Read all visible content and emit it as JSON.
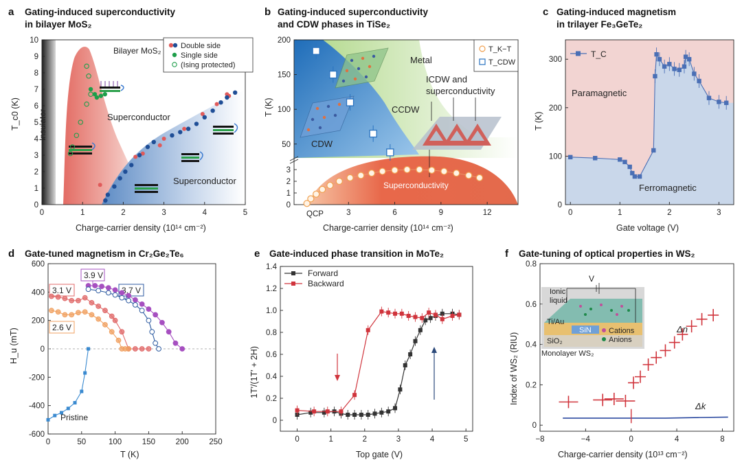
{
  "chart_data": [
    {
      "id": "a",
      "type": "scatter",
      "title_line1": "Gating-induced superconductivity",
      "title_line2": "in bilayer MoS₂",
      "xlabel": "Charge-carrier density (10¹⁴ cm⁻²)",
      "ylabel": "T_c0 (K)",
      "xlim": [
        0,
        5
      ],
      "ylim": [
        0,
        10
      ],
      "xticks": [
        "0",
        "1",
        "2",
        "3",
        "4",
        "5"
      ],
      "yticks": [
        "0",
        "1",
        "2",
        "3",
        "4",
        "5",
        "6",
        "7",
        "8",
        "9",
        "10"
      ],
      "legend": [
        "Double side",
        "Single side",
        "(Ising protected)"
      ],
      "labels": {
        "material": "Bilayer MoS₂",
        "insulator": "Insulator",
        "sc1": "Superconductor",
        "sc2": "Superconductor"
      },
      "colors": {
        "double_red": "#e05a5a",
        "double_blue": "#1f4e96",
        "single": "#1e9e4a",
        "dome1": "#e8807a",
        "dome2": "#6e95c8"
      },
      "series": [
        {
          "name": "Double side (red)",
          "x": [
            1.43,
            2.3,
            2.48,
            3.0,
            3.5,
            3.95,
            4.3,
            4.6,
            4.55,
            2.9
          ],
          "y": [
            1.2,
            2.9,
            3.1,
            4.0,
            4.6,
            5.5,
            6.1,
            6.6,
            6.7,
            3.6
          ]
        },
        {
          "name": "Double side (blue)",
          "x": [
            1.56,
            1.62,
            1.78,
            1.92,
            2.05,
            2.2,
            2.4,
            2.6,
            2.75,
            3.2,
            3.4,
            3.6,
            3.8,
            4.0,
            4.2,
            4.4,
            4.55,
            4.75
          ],
          "y": [
            0.25,
            0.6,
            1.1,
            1.6,
            2.0,
            2.4,
            3.0,
            3.5,
            3.8,
            4.2,
            4.4,
            4.6,
            4.9,
            5.3,
            5.7,
            6.2,
            6.5,
            6.8
          ]
        },
        {
          "name": "Single side",
          "x": [
            1.2,
            1.3,
            1.35,
            1.45,
            1.55
          ],
          "y": [
            7.0,
            6.7,
            6.5,
            6.6,
            6.7
          ]
        },
        {
          "name": "(Ising protected)",
          "x": [
            1.1,
            1.15,
            1.2,
            1.1,
            0.95,
            0.85,
            0.75,
            0.7
          ],
          "y": [
            8.4,
            7.8,
            6.7,
            6.1,
            5.0,
            4.2,
            3.5,
            3.1
          ]
        }
      ]
    },
    {
      "id": "b",
      "type": "scatter",
      "title_line1": "Gating-induced superconductivity",
      "title_line2": "and CDW phases in TiSe₂",
      "xlabel": "Charge-carrier density (10¹⁴ cm⁻²)",
      "ylabel": "T (K)",
      "xticks": [
        "3",
        "6",
        "9",
        "12"
      ],
      "yticks_upper": [
        "50",
        "100",
        "150",
        "200"
      ],
      "yticks_lower": [
        "0",
        "1",
        "2",
        "3"
      ],
      "legend": [
        "T_K−T",
        "T_CDW"
      ],
      "labels": {
        "qcp": "QCP",
        "metal": "Metal",
        "cdw": "CDW",
        "ccdw": "CCDW",
        "icdw1": "ICDW and",
        "icdw2": "superconductivity",
        "sc": "Superconductivity"
      },
      "colors": {
        "cdw_blue": "#2a73c0",
        "metal_green": "#a8d27a",
        "sc_orange": "#e86a4a",
        "tkt": "#f0a050"
      },
      "series": [
        {
          "name": "T_CDW",
          "x": [
            0.9,
            2.0,
            3.1,
            4.6,
            5.7
          ],
          "y": [
            184,
            150,
            110,
            65,
            38
          ]
        },
        {
          "name": "T_K−T",
          "x": [
            0.3,
            0.55,
            0.9,
            1.3,
            1.8,
            2.4,
            3.1,
            3.8,
            4.5,
            5.2,
            6.0,
            6.8,
            7.6,
            8.4,
            9.2,
            10.0,
            10.8,
            11.5
          ],
          "y": [
            0.1,
            0.5,
            0.9,
            1.3,
            1.65,
            2.0,
            2.3,
            2.5,
            2.7,
            2.85,
            2.95,
            3.0,
            3.0,
            2.95,
            2.85,
            2.7,
            2.5,
            2.3
          ]
        }
      ]
    },
    {
      "id": "c",
      "type": "line",
      "title_line1": "Gating-induced magnetism",
      "title_line2": "in trilayer Fe₃GeTe₂",
      "xlabel": "Gate voltage (V)",
      "ylabel": "T (K)",
      "xlim": [
        -0.1,
        3.3
      ],
      "ylim": [
        0,
        340
      ],
      "xticks": [
        "0",
        "1",
        "2",
        "3"
      ],
      "yticks": [
        "0",
        "100",
        "200",
        "300"
      ],
      "legend": [
        "T_C"
      ],
      "labels": {
        "para": "Paramagnetic",
        "ferro": "Ferromagnetic"
      },
      "colors": {
        "line": "#4a6fb5",
        "para_bg": "#f2d4d2",
        "ferro_bg": "#c9d7ea"
      },
      "series": [
        {
          "name": "T_C",
          "x": [
            0.0,
            0.5,
            1.0,
            1.1,
            1.2,
            1.25,
            1.3,
            1.4,
            1.68,
            1.71,
            1.74,
            1.8,
            1.9,
            2.0,
            2.1,
            2.2,
            2.3,
            2.33,
            2.4,
            2.5,
            2.6,
            2.8,
            3.0,
            3.15
          ],
          "y": [
            98,
            96,
            93,
            88,
            78,
            65,
            58,
            58,
            112,
            265,
            310,
            300,
            285,
            290,
            280,
            278,
            285,
            305,
            300,
            270,
            255,
            220,
            212,
            210
          ]
        }
      ]
    },
    {
      "id": "d",
      "type": "line",
      "title": "Gate-tuned magnetism in Cr₂Ge₂Te₆",
      "xlabel": "T (K)",
      "ylabel": "H_u (mT)",
      "xlim": [
        0,
        250
      ],
      "ylim": [
        -600,
        600
      ],
      "xticks": [
        "0",
        "50",
        "100",
        "150",
        "200",
        "250"
      ],
      "yticks": [
        "-600",
        "-400",
        "-200",
        "0",
        "200",
        "400",
        "600"
      ],
      "legend": [
        "3.9 V",
        "3.7 V",
        "3.1 V",
        "2.6 V",
        "Pristine"
      ],
      "colors": {
        "v39": "#a64fc0",
        "v37": "#2c5aa0",
        "v31": "#e06a6a",
        "v26": "#f0a060",
        "pristine": "#3a8ad0"
      },
      "series": [
        {
          "name": "3.9 V",
          "x": [
            60,
            70,
            80,
            90,
            100,
            110,
            120,
            130,
            140,
            150,
            160,
            170,
            180,
            190,
            200
          ],
          "y": [
            445,
            445,
            440,
            430,
            415,
            395,
            375,
            345,
            315,
            280,
            240,
            185,
            120,
            40,
            0
          ]
        },
        {
          "name": "3.7 V",
          "x": [
            60,
            75,
            90,
            100,
            110,
            120,
            130,
            140,
            150,
            155,
            160,
            165
          ],
          "y": [
            420,
            410,
            395,
            380,
            360,
            340,
            310,
            270,
            200,
            120,
            40,
            0
          ]
        },
        {
          "name": "3.1 V",
          "x": [
            5,
            15,
            25,
            35,
            45,
            55,
            65,
            75,
            85,
            95,
            100,
            110,
            120,
            130,
            140,
            150
          ],
          "y": [
            370,
            365,
            355,
            340,
            340,
            360,
            325,
            300,
            270,
            230,
            200,
            120,
            0,
            0,
            0,
            0
          ]
        },
        {
          "name": "2.6 V",
          "x": [
            5,
            15,
            25,
            35,
            45,
            55,
            65,
            75,
            85,
            95,
            105,
            110,
            115,
            120
          ],
          "y": [
            270,
            260,
            240,
            240,
            255,
            260,
            240,
            210,
            170,
            120,
            60,
            0,
            0,
            0
          ]
        },
        {
          "name": "Pristine",
          "x": [
            0,
            10,
            20,
            30,
            40,
            50,
            55,
            60,
            60
          ],
          "y": [
            -500,
            -470,
            -450,
            -420,
            -380,
            -300,
            -170,
            0,
            0
          ]
        }
      ]
    },
    {
      "id": "e",
      "type": "line",
      "title": "Gate-induced phase transition in MoTe₂",
      "xlabel": "Top gate (V)",
      "ylabel": "1T′/(1T′ + 2H)",
      "xlim": [
        -0.5,
        5.2
      ],
      "ylim": [
        -0.1,
        1.4
      ],
      "xticks": [
        "0",
        "1",
        "2",
        "3",
        "4",
        "5"
      ],
      "yticks": [
        "0",
        "0.2",
        "0.4",
        "0.6",
        "0.8",
        "1.0",
        "1.2",
        "1.4"
      ],
      "legend": [
        "Forward",
        "Backward"
      ],
      "colors": {
        "forward": "#333333",
        "backward": "#d0343c",
        "arrow_red": "#d0343c",
        "arrow_blue": "#2c4a7a"
      },
      "series": [
        {
          "name": "Forward",
          "x": [
            0,
            0.4,
            0.8,
            1.1,
            1.3,
            1.5,
            1.7,
            1.9,
            2.1,
            2.3,
            2.5,
            2.7,
            2.9,
            3.05,
            3.2,
            3.35,
            3.5,
            3.65,
            3.8,
            3.95,
            4.1,
            4.3,
            4.6,
            4.8
          ],
          "y": [
            0.05,
            0.07,
            0.07,
            0.08,
            0.06,
            0.05,
            0.05,
            0.05,
            0.05,
            0.06,
            0.07,
            0.08,
            0.11,
            0.28,
            0.5,
            0.6,
            0.72,
            0.82,
            0.91,
            0.93,
            0.95,
            0.97,
            0.97,
            0.96
          ]
        },
        {
          "name": "Backward",
          "x": [
            4.8,
            4.6,
            4.3,
            4.1,
            3.9,
            3.7,
            3.5,
            3.3,
            3.1,
            2.9,
            2.7,
            2.5,
            2.1,
            1.7,
            1.3,
            0.9,
            0.5,
            0
          ],
          "y": [
            0.96,
            0.95,
            0.92,
            0.96,
            0.98,
            0.93,
            0.94,
            0.95,
            0.97,
            0.97,
            0.98,
            0.99,
            0.82,
            0.23,
            0.08,
            0.08,
            0.08,
            0.09
          ]
        }
      ]
    },
    {
      "id": "f",
      "type": "scatter",
      "title": "Gate-tuning of optical properties in WS₂",
      "xlabel": "Charge-carrier density (10¹³ cm⁻²)",
      "ylabel": "Index of WS₂ (RIU)",
      "xlim": [
        -8,
        9
      ],
      "ylim": [
        -0.03,
        0.8
      ],
      "xticks": [
        "−8",
        "−4",
        "0",
        "4",
        "8"
      ],
      "yticks": [
        "0",
        "0.2",
        "0.4",
        "0.6",
        "0.8"
      ],
      "labels": {
        "dn": "Δn",
        "dk": "Δk",
        "vg": "V",
        "ionic1": "Ionic",
        "ionic2": "liquid",
        "tiau": "Ti/Au",
        "sin": "SiN",
        "sio2": "SiO₂",
        "cations": "Cations",
        "anions": "Anions",
        "mono": "Monolayer WS₂"
      },
      "colors": {
        "dn": "#d0343c",
        "dk": "#2c4aa0",
        "cation": "#c04f9a",
        "anion": "#1e8a4a"
      },
      "series": [
        {
          "name": "Δn",
          "x": [
            -5.5,
            -2.5,
            -1.5,
            -0.5,
            0.2,
            0.8,
            1.5,
            2.2,
            3.0,
            3.8,
            4.5,
            5.3,
            6.2,
            7.2
          ],
          "y": [
            0.115,
            0.125,
            0.13,
            0.12,
            0.21,
            0.24,
            0.3,
            0.335,
            0.37,
            0.41,
            0.45,
            0.49,
            0.525,
            0.545
          ]
        },
        {
          "name": "Δk",
          "x": [
            -6,
            -3,
            0,
            3,
            6,
            8.5
          ],
          "y": [
            0.035,
            0.035,
            0.035,
            0.035,
            0.038,
            0.04
          ]
        }
      ]
    }
  ]
}
